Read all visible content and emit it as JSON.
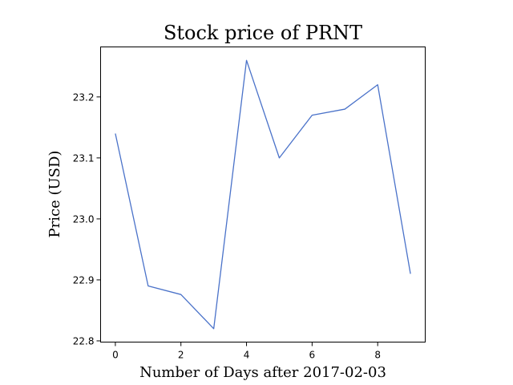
{
  "chart_data": {
    "type": "line",
    "title": "Stock price of PRNT",
    "xlabel": "Number of Days after 2017-02-03",
    "ylabel": "Price (USD)",
    "xlim": [
      -0.45,
      9.45
    ],
    "ylim": [
      22.798,
      23.282
    ],
    "x_ticks": [
      0,
      2,
      4,
      6,
      8
    ],
    "x_tick_labels": [
      "0",
      "2",
      "4",
      "6",
      "8"
    ],
    "y_ticks": [
      22.8,
      22.9,
      23.0,
      23.1,
      23.2
    ],
    "y_tick_labels": [
      "22.8",
      "22.9",
      "23.0",
      "23.1",
      "23.2"
    ],
    "grid": false,
    "series": [
      {
        "color": "#4a72c9",
        "x": [
          0,
          1,
          2,
          3,
          4,
          5,
          6,
          7,
          8,
          9
        ],
        "values": [
          23.14,
          22.89,
          22.876,
          22.82,
          23.26,
          23.1,
          23.17,
          23.18,
          23.22,
          22.91
        ]
      }
    ]
  }
}
